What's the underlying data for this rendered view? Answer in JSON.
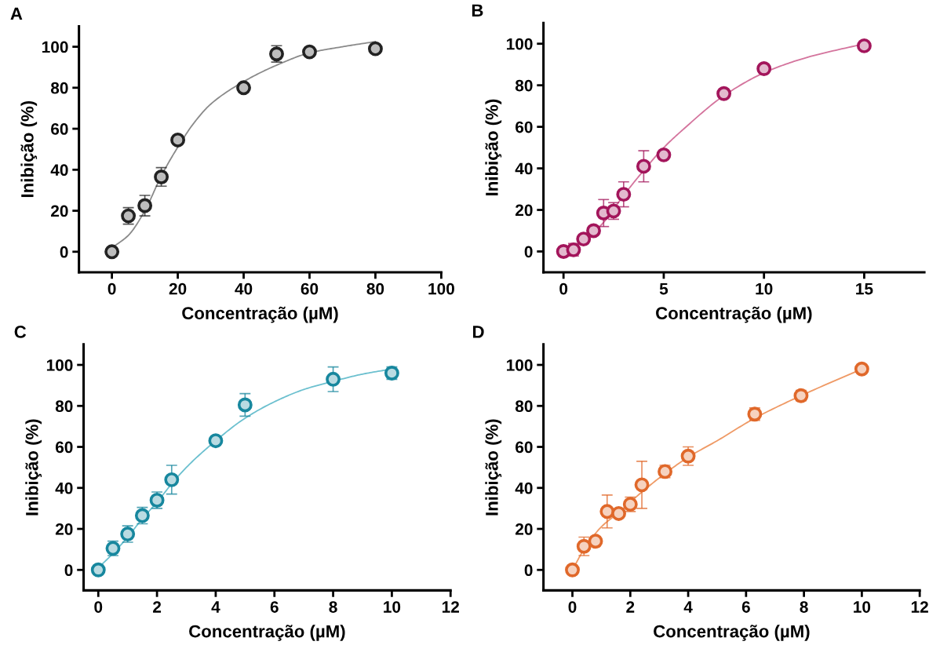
{
  "chart_data": [
    {
      "type": "scatter",
      "title": "A",
      "xlabel": "Concentração (µM)",
      "ylabel": "Inibição (%)",
      "xlim": [
        -10,
        100
      ],
      "ylim": [
        -10,
        110
      ],
      "xticks": [
        0,
        20,
        40,
        60,
        80,
        100
      ],
      "yticks": [
        0,
        20,
        40,
        60,
        80,
        100
      ],
      "grid": false,
      "legend": false,
      "series": [
        {
          "marker": "circle",
          "color": "#222222",
          "x": [
            0,
            5,
            10,
            15,
            20,
            40,
            50,
            60,
            80
          ],
          "values": [
            0,
            17.5,
            22.5,
            36.5,
            54.5,
            80,
            96.5,
            97.5,
            99
          ],
          "errors": [
            null,
            4,
            5,
            4.5,
            null,
            null,
            4,
            null,
            null
          ]
        },
        {
          "type": "line",
          "color": "#8a8a8a",
          "x": [
            1,
            5,
            10,
            15,
            20,
            25,
            30,
            40,
            50,
            60,
            70,
            80
          ],
          "values": [
            3,
            8,
            20,
            37,
            51,
            63,
            72,
            83,
            91,
            97,
            100,
            102.5
          ]
        }
      ]
    },
    {
      "type": "scatter",
      "title": "B",
      "xlabel": "Concentração (µM)",
      "ylabel": "Inibição (%)",
      "xlim": [
        -1,
        18
      ],
      "ylim": [
        -10,
        110
      ],
      "xticks": [
        0,
        5,
        10,
        15
      ],
      "yticks": [
        0,
        20,
        40,
        60,
        80,
        100
      ],
      "grid": false,
      "legend": false,
      "series": [
        {
          "marker": "circle",
          "color": "#a3155b",
          "x": [
            0,
            0.5,
            1,
            1.5,
            2,
            2.5,
            3,
            4,
            5,
            8,
            10,
            15
          ],
          "values": [
            0,
            0.8,
            6,
            10,
            18.5,
            19.5,
            27.5,
            41,
            46.5,
            76,
            88,
            99
          ],
          "errors": [
            null,
            3,
            null,
            null,
            6.5,
            4,
            6,
            7.5,
            null,
            null,
            null,
            null
          ]
        },
        {
          "type": "line",
          "color": "#d4749d",
          "x": [
            0,
            1,
            2,
            3,
            4,
            5,
            6,
            8,
            10,
            12,
            15
          ],
          "values": [
            0,
            5,
            14,
            27,
            39,
            50,
            59,
            75,
            86,
            93,
            100
          ]
        }
      ]
    },
    {
      "type": "scatter",
      "title": "C",
      "xlabel": "Concentração (µM)",
      "ylabel": "Inibição (%)",
      "xlim": [
        -0.5,
        12
      ],
      "ylim": [
        -10,
        110
      ],
      "xticks": [
        0,
        2,
        4,
        6,
        8,
        10,
        12
      ],
      "yticks": [
        0,
        20,
        40,
        60,
        80,
        100
      ],
      "grid": false,
      "legend": false,
      "series": [
        {
          "marker": "circle",
          "color": "#17879e",
          "x": [
            0,
            0.5,
            1,
            1.5,
            2,
            2.5,
            4,
            5,
            8,
            10
          ],
          "values": [
            0,
            10.5,
            17.5,
            26.5,
            34,
            44,
            63,
            80.5,
            93,
            96
          ],
          "errors": [
            null,
            3.5,
            4,
            4,
            4,
            7,
            null,
            5.5,
            6,
            3
          ]
        },
        {
          "type": "line",
          "color": "#6cc0cf",
          "x": [
            0,
            0.5,
            1,
            1.5,
            2,
            2.5,
            3,
            4,
            5,
            6,
            7,
            8,
            9,
            10
          ],
          "values": [
            1,
            8,
            16,
            25,
            33,
            42,
            50,
            63,
            74,
            82,
            88,
            92,
            95.5,
            98
          ]
        }
      ]
    },
    {
      "type": "scatter",
      "title": "D",
      "xlabel": "Concentração (µM)",
      "ylabel": "Inibição (%)",
      "xlim": [
        -1,
        12
      ],
      "ylim": [
        -10,
        110
      ],
      "xticks": [
        0,
        2,
        4,
        6,
        8,
        10,
        12
      ],
      "yticks": [
        0,
        20,
        40,
        60,
        80,
        100
      ],
      "grid": false,
      "legend": false,
      "series": [
        {
          "marker": "circle",
          "color": "#e0682a",
          "x": [
            0,
            0.4,
            0.8,
            1.2,
            1.6,
            2,
            2.4,
            3.2,
            4,
            6.3,
            7.9,
            10
          ],
          "values": [
            0,
            11.5,
            14,
            28.5,
            27.5,
            32,
            41.5,
            48,
            55.5,
            76,
            85,
            98
          ],
          "errors": [
            null,
            4.5,
            null,
            8,
            null,
            3.5,
            11.5,
            3,
            4.5,
            3,
            2.5,
            null
          ]
        },
        {
          "type": "line",
          "color": "#ef9a66",
          "x": [
            0,
            0.4,
            1,
            1.6,
            2.4,
            3.2,
            4,
            5,
            6.3,
            7.9,
            10
          ],
          "values": [
            0,
            10,
            21,
            28,
            38,
            47,
            55,
            63,
            74,
            85,
            98
          ]
        }
      ]
    }
  ]
}
